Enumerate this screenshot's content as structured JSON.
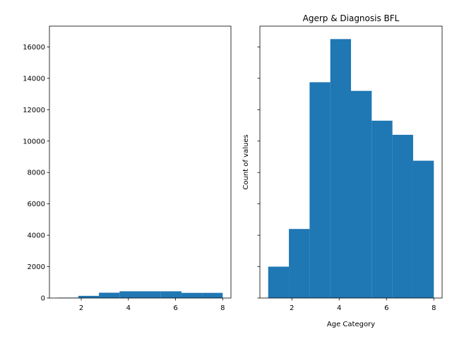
{
  "chart_data": [
    {
      "type": "histogram",
      "title": "",
      "xlabel": "",
      "ylabel": "",
      "xlim": [
        0.65,
        8.35
      ],
      "ylim": [
        0,
        17325
      ],
      "xticks": [
        2,
        4,
        6,
        8
      ],
      "yticks": [
        0,
        2000,
        4000,
        6000,
        8000,
        10000,
        12000,
        14000,
        16000
      ],
      "grid": false,
      "color": "#1f77b4",
      "bin_edges": [
        1,
        1.875,
        2.75,
        3.625,
        4.5,
        5.375,
        6.25,
        7.125,
        8
      ],
      "values": [
        25,
        140,
        340,
        430,
        430,
        430,
        330,
        330
      ]
    },
    {
      "type": "histogram",
      "title": "Agerp & Diagnosis BFL",
      "xlabel": "Age Category",
      "ylabel": "Count of values",
      "xlim": [
        0.65,
        8.35
      ],
      "ylim": [
        0,
        17325
      ],
      "xticks": [
        2,
        4,
        6,
        8
      ],
      "yticks": [
        0,
        2000,
        4000,
        6000,
        8000,
        10000,
        12000,
        14000,
        16000
      ],
      "shared_y": true,
      "grid": false,
      "color": "#1f77b4",
      "bin_edges": [
        1,
        1.875,
        2.75,
        3.625,
        4.5,
        5.375,
        6.25,
        7.125,
        8
      ],
      "values": [
        2000,
        4400,
        13750,
        16500,
        13200,
        11300,
        10400,
        8750
      ]
    }
  ]
}
